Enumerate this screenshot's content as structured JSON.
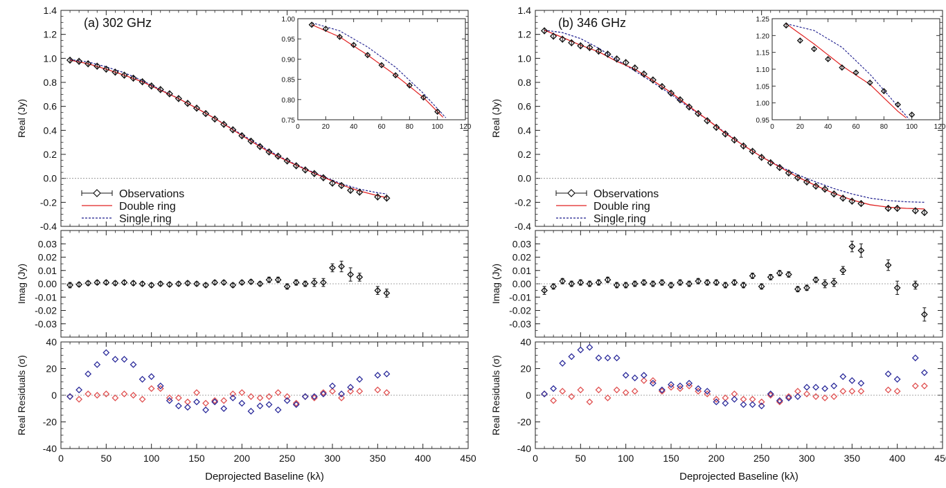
{
  "chart_data": [
    {
      "type": "scatter",
      "panel": "(a) 302 GHz",
      "xlabel": "Deprojected Baseline (kλ)",
      "xlim": [
        0,
        450
      ],
      "xticks": [
        0,
        50,
        100,
        150,
        200,
        250,
        300,
        350,
        400,
        450
      ],
      "real": {
        "ylabel": "Real (Jy)",
        "ylim": [
          -0.4,
          1.4
        ],
        "yticks": [
          "-0.4",
          "-0.2",
          "0.0",
          "0.2",
          "0.4",
          "0.6",
          "0.8",
          "1.0",
          "1.2",
          "1.4"
        ],
        "legend": [
          "Observations",
          "Double ring",
          "Single ring"
        ],
        "observations": {
          "x": [
            10,
            20,
            30,
            40,
            50,
            60,
            70,
            80,
            90,
            100,
            110,
            120,
            130,
            140,
            150,
            160,
            170,
            180,
            190,
            200,
            210,
            220,
            230,
            240,
            250,
            260,
            270,
            280,
            290,
            300,
            310,
            320,
            330,
            350,
            360
          ],
          "y": [
            0.985,
            0.975,
            0.955,
            0.935,
            0.91,
            0.885,
            0.86,
            0.835,
            0.805,
            0.77,
            0.74,
            0.705,
            0.665,
            0.625,
            0.585,
            0.54,
            0.495,
            0.45,
            0.405,
            0.355,
            0.31,
            0.265,
            0.22,
            0.185,
            0.145,
            0.105,
            0.07,
            0.04,
            0.005,
            -0.04,
            -0.06,
            -0.1,
            -0.115,
            -0.155,
            -0.165
          ]
        },
        "double_ring": {
          "x": [
            10,
            30,
            50,
            70,
            90,
            110,
            130,
            150,
            170,
            190,
            210,
            230,
            250,
            270,
            290,
            310,
            330,
            350,
            360
          ],
          "y": [
            0.985,
            0.955,
            0.91,
            0.86,
            0.805,
            0.735,
            0.665,
            0.585,
            0.5,
            0.405,
            0.31,
            0.22,
            0.145,
            0.075,
            0.01,
            -0.055,
            -0.105,
            -0.145,
            -0.16
          ]
        },
        "single_ring": {
          "x": [
            10,
            30,
            50,
            70,
            90,
            110,
            130,
            150,
            170,
            190,
            210,
            230,
            250,
            270,
            290,
            310,
            330,
            350,
            360
          ],
          "y": [
            0.99,
            0.97,
            0.93,
            0.88,
            0.815,
            0.74,
            0.665,
            0.585,
            0.5,
            0.41,
            0.32,
            0.23,
            0.15,
            0.08,
            0.015,
            -0.045,
            -0.09,
            -0.12,
            -0.13
          ]
        },
        "inset": {
          "xlim": [
            0,
            120
          ],
          "ylim": [
            0.75,
            1.0
          ],
          "xticks": [
            0,
            20,
            40,
            60,
            80,
            100,
            120
          ],
          "yticks": [
            "0.75",
            "0.80",
            "0.85",
            "0.90",
            "0.95",
            "1.00"
          ]
        }
      },
      "imag": {
        "ylabel": "Imag (Jy)",
        "ylim": [
          -0.04,
          0.04
        ],
        "yticks": [
          "-0.03",
          "-0.02",
          "-0.01",
          "0.00",
          "0.01",
          "0.02",
          "0.03"
        ],
        "x": [
          10,
          20,
          30,
          40,
          50,
          60,
          70,
          80,
          90,
          100,
          110,
          120,
          130,
          140,
          150,
          160,
          170,
          180,
          190,
          200,
          210,
          220,
          230,
          240,
          250,
          260,
          270,
          280,
          290,
          300,
          310,
          320,
          330,
          350,
          360
        ],
        "y": [
          -0.001,
          -0.0005,
          0.0005,
          0.001,
          0.001,
          0.0005,
          0.001,
          0.0005,
          0,
          -0.001,
          0,
          -0.0005,
          0,
          0.0005,
          0,
          -0.001,
          0.001,
          0.001,
          -0.001,
          0.001,
          0.0015,
          0,
          0.003,
          0.003,
          -0.002,
          0.001,
          0,
          0.001,
          0.001,
          0.012,
          0.013,
          0.007,
          0.005,
          -0.005,
          -0.007
        ],
        "err": [
          0.002,
          0.0015,
          0.0015,
          0.0015,
          0.0015,
          0.0015,
          0.0015,
          0.0015,
          0.0015,
          0.0015,
          0.0015,
          0.0015,
          0.0015,
          0.0015,
          0.0015,
          0.0015,
          0.0015,
          0.0015,
          0.0015,
          0.0015,
          0.0015,
          0.0015,
          0.002,
          0.002,
          0.002,
          0.002,
          0.002,
          0.003,
          0.003,
          0.003,
          0.004,
          0.005,
          0.003,
          0.003,
          0.003
        ]
      },
      "residuals": {
        "ylabel": "Real Residuals (σ)",
        "ylim": [
          -40,
          40
        ],
        "yticks": [
          "-40",
          "-20",
          "0",
          "20",
          "40"
        ],
        "x": [
          10,
          20,
          30,
          40,
          50,
          60,
          70,
          80,
          90,
          100,
          110,
          120,
          130,
          140,
          150,
          160,
          170,
          180,
          190,
          200,
          210,
          220,
          230,
          240,
          250,
          260,
          270,
          280,
          290,
          300,
          310,
          320,
          330,
          350,
          360
        ],
        "single_ring": [
          -1,
          4,
          16,
          23,
          32,
          27,
          27,
          23,
          12,
          14,
          7,
          -4,
          -8,
          -9,
          -5,
          -11,
          -5,
          -10,
          -2,
          -6,
          -12,
          -8,
          -7,
          -11,
          -4,
          -7,
          -1,
          -1,
          1,
          7,
          1,
          6,
          12,
          15,
          16
        ],
        "double_ring": [
          -1,
          -3,
          1,
          0,
          1,
          -2,
          1,
          0,
          -3,
          5,
          5,
          -2,
          -2,
          -5,
          2,
          -6,
          -4,
          -4,
          1,
          2,
          -1,
          -2,
          -1,
          2,
          -1,
          -6,
          -1,
          -2,
          2,
          3,
          -2,
          3,
          3,
          4,
          2
        ]
      }
    },
    {
      "type": "scatter",
      "panel": "(b) 346 GHz",
      "xlabel": "Deprojected Baseline (kλ)",
      "xlim": [
        0,
        450
      ],
      "xticks": [
        0,
        50,
        100,
        150,
        200,
        250,
        300,
        350,
        400,
        450
      ],
      "real": {
        "ylabel": "Real (Jy)",
        "ylim": [
          -0.4,
          1.4
        ],
        "yticks": [
          "-0.4",
          "-0.2",
          "0.0",
          "0.2",
          "0.4",
          "0.6",
          "0.8",
          "1.0",
          "1.2",
          "1.4"
        ],
        "legend": [
          "Observations",
          "Double ring",
          "Single ring"
        ],
        "observations": {
          "x": [
            10,
            20,
            30,
            40,
            50,
            60,
            70,
            80,
            90,
            100,
            110,
            120,
            130,
            140,
            150,
            160,
            170,
            180,
            190,
            200,
            210,
            220,
            230,
            240,
            250,
            260,
            270,
            280,
            290,
            300,
            310,
            320,
            330,
            340,
            350,
            360,
            390,
            400,
            420,
            430
          ],
          "y": [
            1.23,
            1.185,
            1.16,
            1.13,
            1.105,
            1.09,
            1.06,
            1.035,
            0.995,
            0.965,
            0.92,
            0.87,
            0.82,
            0.765,
            0.71,
            0.655,
            0.595,
            0.54,
            0.48,
            0.425,
            0.37,
            0.32,
            0.27,
            0.225,
            0.175,
            0.13,
            0.09,
            0.045,
            0.005,
            -0.03,
            -0.065,
            -0.09,
            -0.13,
            -0.165,
            -0.19,
            -0.21,
            -0.25,
            -0.25,
            -0.27,
            -0.285
          ]
        },
        "double_ring": {
          "x": [
            10,
            30,
            50,
            70,
            90,
            110,
            130,
            150,
            170,
            190,
            210,
            230,
            250,
            270,
            290,
            310,
            330,
            350,
            370,
            390,
            410,
            430
          ],
          "y": [
            1.235,
            1.175,
            1.11,
            1.055,
            0.975,
            0.91,
            0.815,
            0.715,
            0.6,
            0.49,
            0.375,
            0.275,
            0.18,
            0.095,
            0.01,
            -0.06,
            -0.125,
            -0.18,
            -0.22,
            -0.24,
            -0.25,
            -0.255
          ]
        },
        "single_ring": {
          "x": [
            10,
            30,
            50,
            70,
            90,
            110,
            130,
            150,
            170,
            190,
            210,
            230,
            250,
            270,
            290,
            310,
            330,
            350,
            370,
            390,
            410,
            430
          ],
          "y": [
            1.235,
            1.215,
            1.165,
            1.085,
            0.99,
            0.895,
            0.8,
            0.7,
            0.59,
            0.49,
            0.38,
            0.275,
            0.18,
            0.1,
            0.03,
            -0.03,
            -0.085,
            -0.13,
            -0.165,
            -0.185,
            -0.195,
            -0.2
          ]
        },
        "inset": {
          "xlim": [
            0,
            120
          ],
          "ylim": [
            0.95,
            1.25
          ],
          "xticks": [
            0,
            20,
            40,
            60,
            80,
            100,
            120
          ],
          "yticks": [
            "0.95",
            "1.00",
            "1.05",
            "1.10",
            "1.15",
            "1.20",
            "1.25"
          ]
        }
      },
      "imag": {
        "ylabel": "Imag (Jy)",
        "ylim": [
          -0.04,
          0.04
        ],
        "yticks": [
          "-0.03",
          "-0.02",
          "-0.01",
          "0.00",
          "0.01",
          "0.02",
          "0.03"
        ],
        "x": [
          10,
          20,
          30,
          40,
          50,
          60,
          70,
          80,
          90,
          100,
          110,
          120,
          130,
          140,
          150,
          160,
          170,
          180,
          190,
          200,
          210,
          220,
          230,
          240,
          250,
          260,
          270,
          280,
          290,
          300,
          310,
          320,
          330,
          340,
          350,
          360,
          390,
          400,
          420,
          430
        ],
        "y": [
          -0.005,
          -0.002,
          0.002,
          0,
          0.001,
          0,
          0.001,
          0.003,
          -0.001,
          -0.001,
          0,
          0.001,
          0,
          0.001,
          -0.001,
          0.001,
          0,
          0.002,
          0.001,
          0.001,
          -0.001,
          0.001,
          -0.001,
          0.006,
          -0.002,
          0.005,
          0.008,
          0.007,
          -0.004,
          -0.003,
          0.003,
          0,
          0.001,
          0.01,
          0.028,
          0.025,
          0.014,
          -0.003,
          -0.001,
          -0.023
        ],
        "err": [
          0.003,
          0.002,
          0.002,
          0.002,
          0.002,
          0.002,
          0.002,
          0.002,
          0.002,
          0.002,
          0.002,
          0.002,
          0.002,
          0.002,
          0.002,
          0.002,
          0.002,
          0.002,
          0.002,
          0.002,
          0.002,
          0.002,
          0.002,
          0.002,
          0.002,
          0.002,
          0.002,
          0.002,
          0.002,
          0.002,
          0.002,
          0.003,
          0.003,
          0.003,
          0.004,
          0.005,
          0.004,
          0.005,
          0.003,
          0.005
        ]
      },
      "residuals": {
        "ylabel": "Real Residuals (σ)",
        "ylim": [
          -40,
          40
        ],
        "yticks": [
          "-40",
          "-20",
          "0",
          "20",
          "40"
        ],
        "x": [
          10,
          20,
          30,
          40,
          50,
          60,
          70,
          80,
          90,
          100,
          110,
          120,
          130,
          140,
          150,
          160,
          170,
          180,
          190,
          200,
          210,
          220,
          230,
          240,
          250,
          260,
          270,
          280,
          290,
          300,
          310,
          320,
          330,
          340,
          350,
          360,
          390,
          400,
          420,
          430
        ],
        "single_ring": [
          1,
          5,
          24,
          29,
          34,
          36,
          28,
          28,
          28,
          15,
          13,
          15,
          9,
          4,
          8,
          7,
          9,
          5,
          3,
          -5,
          -6,
          -3,
          -7,
          -7,
          -8,
          1,
          -4,
          -2,
          -1,
          6,
          6,
          5,
          7,
          14,
          11,
          9,
          16,
          12,
          28,
          17
        ],
        "double_ring": [
          1,
          -4,
          3,
          -1,
          4,
          -5,
          4,
          -2,
          4,
          2,
          3,
          11,
          11,
          3,
          6,
          5,
          7,
          3,
          1,
          -3,
          -2,
          1,
          -3,
          -3,
          -5,
          0,
          -5,
          -1,
          3,
          1,
          -1,
          -2,
          -1,
          3,
          3,
          3,
          4,
          3,
          7,
          7
        ]
      }
    }
  ]
}
